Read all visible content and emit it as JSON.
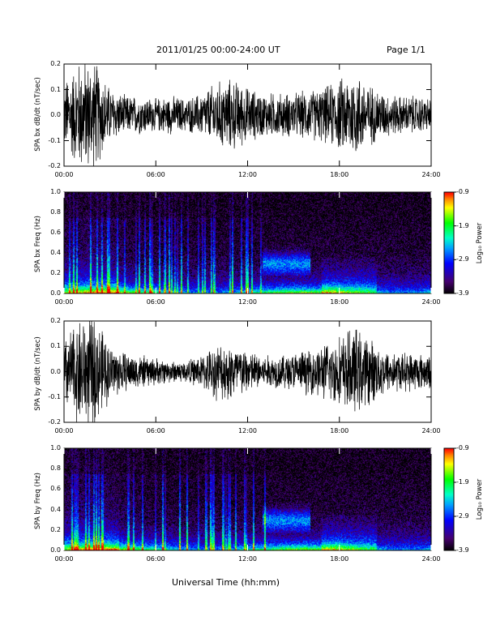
{
  "header": {
    "title": "2011/01/25  00:00-24:00 UT",
    "page": "Page 1/1"
  },
  "x_axis_title": "Universal Time (hh:mm)",
  "chart_data": [
    {
      "type": "line",
      "ylabel": "SPA bx dB/dt (nT/sec)",
      "xlim": [
        "00:00",
        "24:00"
      ],
      "xticks": [
        "00:00",
        "06:00",
        "12:00",
        "18:00",
        "24:00"
      ],
      "ylim": [
        -0.2,
        0.2
      ],
      "yticks": [
        "-0.2",
        "-0.1",
        "0.0",
        "0.1",
        "0.2"
      ],
      "x": [
        "00:00",
        "01:00",
        "02:00",
        "03:00",
        "04:00",
        "05:00",
        "06:00",
        "07:00",
        "08:00",
        "09:00",
        "10:00",
        "11:00",
        "12:00",
        "13:00",
        "14:00",
        "15:00",
        "16:00",
        "17:00",
        "18:00",
        "19:00",
        "20:00",
        "21:00",
        "22:00",
        "23:00",
        "24:00"
      ],
      "amplitude": [
        0.12,
        0.2,
        0.2,
        0.1,
        0.07,
        0.07,
        0.06,
        0.07,
        0.06,
        0.08,
        0.12,
        0.13,
        0.1,
        0.08,
        0.08,
        0.08,
        0.09,
        0.1,
        0.13,
        0.16,
        0.11,
        0.08,
        0.07,
        0.07,
        0.06
      ]
    },
    {
      "type": "heatmap",
      "ylabel": "SPA bx Freq (Hz)",
      "xlim": [
        "00:00",
        "24:00"
      ],
      "xticks": [
        "00:00",
        "06:00",
        "12:00",
        "18:00",
        "24:00"
      ],
      "ylim": [
        0.0,
        1.0
      ],
      "yticks": [
        "0.0",
        "0.2",
        "0.4",
        "0.6",
        "0.8",
        "1.0"
      ],
      "colorbar": {
        "label": "Log₁₀ Power",
        "range": [
          -3.9,
          -0.9
        ],
        "ticks": [
          "-0.9",
          "-1.9",
          "-2.9",
          "-3.9"
        ]
      }
    },
    {
      "type": "line",
      "ylabel": "SPA by dB/dt (nT/sec)",
      "xlim": [
        "00:00",
        "24:00"
      ],
      "xticks": [
        "00:00",
        "06:00",
        "12:00",
        "18:00",
        "24:00"
      ],
      "ylim": [
        -0.2,
        0.2
      ],
      "yticks": [
        "-0.2",
        "-0.1",
        "0.0",
        "0.1",
        "0.2"
      ],
      "x": [
        "00:00",
        "01:00",
        "02:00",
        "03:00",
        "04:00",
        "05:00",
        "06:00",
        "07:00",
        "08:00",
        "09:00",
        "10:00",
        "11:00",
        "12:00",
        "13:00",
        "14:00",
        "15:00",
        "16:00",
        "17:00",
        "18:00",
        "19:00",
        "20:00",
        "21:00",
        "22:00",
        "23:00",
        "24:00"
      ],
      "amplitude": [
        0.12,
        0.2,
        0.2,
        0.1,
        0.07,
        0.06,
        0.05,
        0.04,
        0.04,
        0.06,
        0.1,
        0.11,
        0.08,
        0.06,
        0.06,
        0.07,
        0.08,
        0.1,
        0.13,
        0.16,
        0.12,
        0.08,
        0.07,
        0.07,
        0.06
      ]
    },
    {
      "type": "heatmap",
      "ylabel": "SPA by Freq (Hz)",
      "xlim": [
        "00:00",
        "24:00"
      ],
      "xticks": [
        "00:00",
        "06:00",
        "12:00",
        "18:00",
        "24:00"
      ],
      "ylim": [
        0.0,
        1.0
      ],
      "yticks": [
        "0.0",
        "0.2",
        "0.4",
        "0.6",
        "0.8",
        "1.0"
      ],
      "colorbar": {
        "label": "Log₁₀ Power",
        "range": [
          -3.9,
          -0.9
        ],
        "ticks": [
          "-0.9",
          "-1.9",
          "-2.9",
          "-3.9"
        ]
      }
    }
  ]
}
